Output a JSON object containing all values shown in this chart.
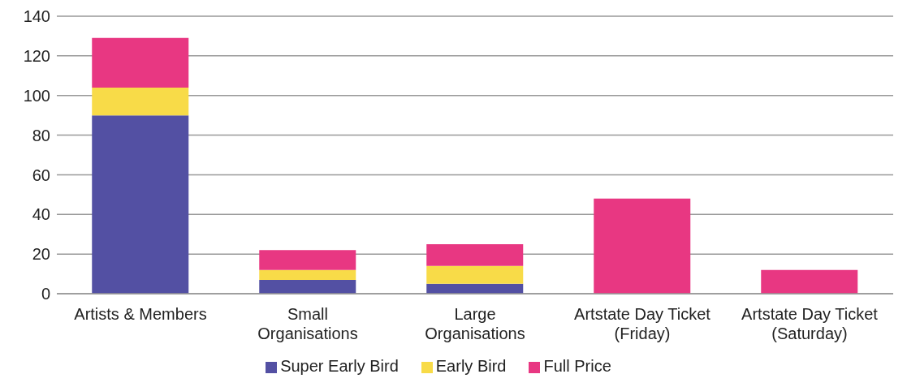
{
  "chart_data": {
    "type": "bar",
    "stacked": true,
    "categories": [
      "Artists & Members",
      "Small Organisations",
      "Large Organisations",
      "Artstate Day Ticket (Friday)",
      "Artstate Day Ticket (Saturday)"
    ],
    "series": [
      {
        "name": "Super Early Bird",
        "color": "#5350a3",
        "values": [
          90,
          7,
          5,
          0,
          0
        ]
      },
      {
        "name": "Early Bird",
        "color": "#f8db48",
        "values": [
          14,
          5,
          9,
          0,
          0
        ]
      },
      {
        "name": "Full Price",
        "color": "#e83782",
        "values": [
          25,
          10,
          11,
          48,
          12
        ]
      }
    ],
    "ylim": [
      0,
      140
    ],
    "yticks": [
      0,
      20,
      40,
      60,
      80,
      100,
      120,
      140
    ],
    "grid": "y",
    "legend": "bottom"
  }
}
